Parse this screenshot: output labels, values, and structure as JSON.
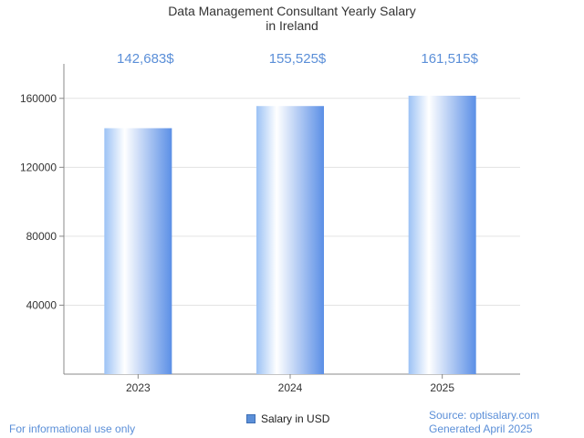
{
  "chart_data": {
    "type": "bar",
    "title_line1": "Data Management Consultant Yearly Salary",
    "title_line2": "in Ireland",
    "categories": [
      "2023",
      "2024",
      "2025"
    ],
    "values": [
      142683,
      155525,
      161515
    ],
    "value_labels": [
      "142,683$",
      "155,525$",
      "161,515$"
    ],
    "series": [
      {
        "name": "Salary in USD",
        "values": [
          142683,
          155525,
          161515
        ]
      }
    ],
    "yticks": [
      40000,
      80000,
      120000,
      160000
    ],
    "ylim": [
      0,
      180000
    ],
    "grid": true,
    "legend_position": "bottom"
  },
  "legend": {
    "label": "Salary in USD"
  },
  "footer": {
    "left": "For informational use only",
    "source": "Source: optisalary.com",
    "generated": "Generated April 2025"
  },
  "colors": {
    "bar_edge": "#5b8fd8",
    "value_label": "#5b8fd8",
    "grid": "#e3e3e3",
    "axis": "#888888"
  }
}
